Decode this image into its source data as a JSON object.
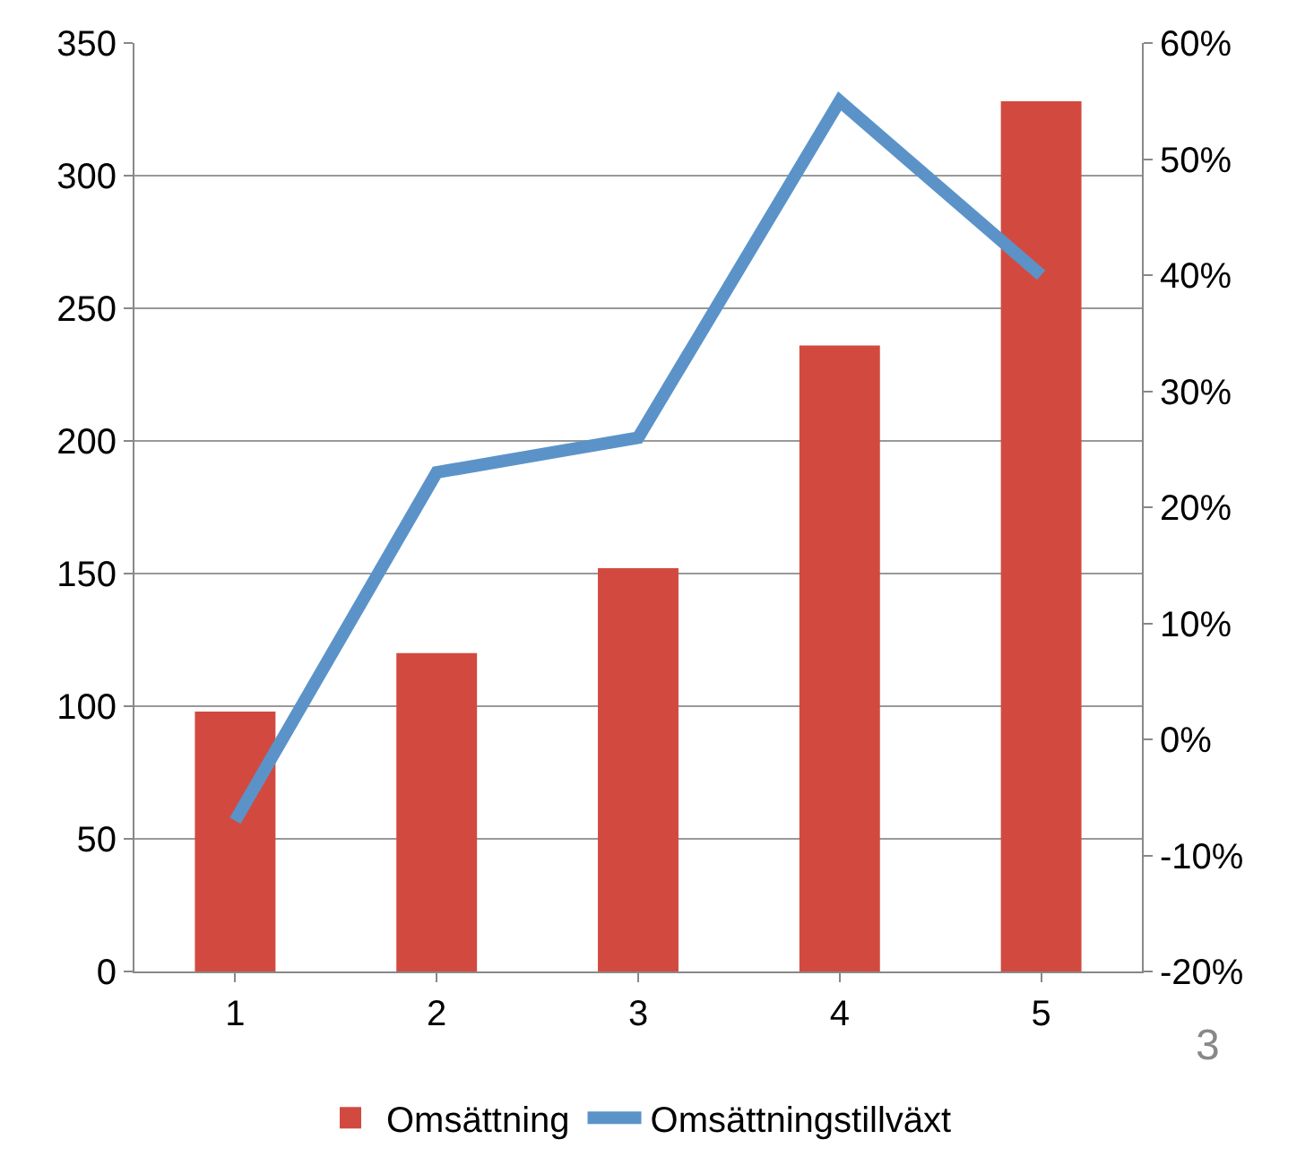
{
  "chart_data": {
    "type": "bar",
    "categories": [
      "1",
      "2",
      "3",
      "4",
      "5"
    ],
    "series": [
      {
        "name": "Omsättning",
        "color": "#d24a3f",
        "values": [
          98,
          120,
          152,
          236,
          328
        ]
      },
      {
        "name": "Omsättningstillväxt",
        "type": "line",
        "axis": "y2",
        "color": "#5b93c9",
        "values": [
          -7,
          23,
          26,
          55,
          40
        ]
      }
    ],
    "ylim": [
      0,
      350
    ],
    "yticks": [
      0,
      50,
      100,
      150,
      200,
      250,
      300,
      350
    ],
    "y2lim": [
      -20,
      60
    ],
    "y2ticks": [
      {
        "value": -20,
        "label": "-20%"
      },
      {
        "value": -10,
        "label": "-10%"
      },
      {
        "value": 0,
        "label": "0%"
      },
      {
        "value": 10,
        "label": "10%"
      },
      {
        "value": 20,
        "label": "20%"
      },
      {
        "value": 30,
        "label": "30%"
      },
      {
        "value": 40,
        "label": "40%"
      },
      {
        "value": 50,
        "label": "50%"
      },
      {
        "value": 60,
        "label": "60%"
      }
    ],
    "grid": "y",
    "legend": "bottom",
    "marker": "none",
    "line_style": "solid",
    "annotations": [
      "3"
    ]
  }
}
